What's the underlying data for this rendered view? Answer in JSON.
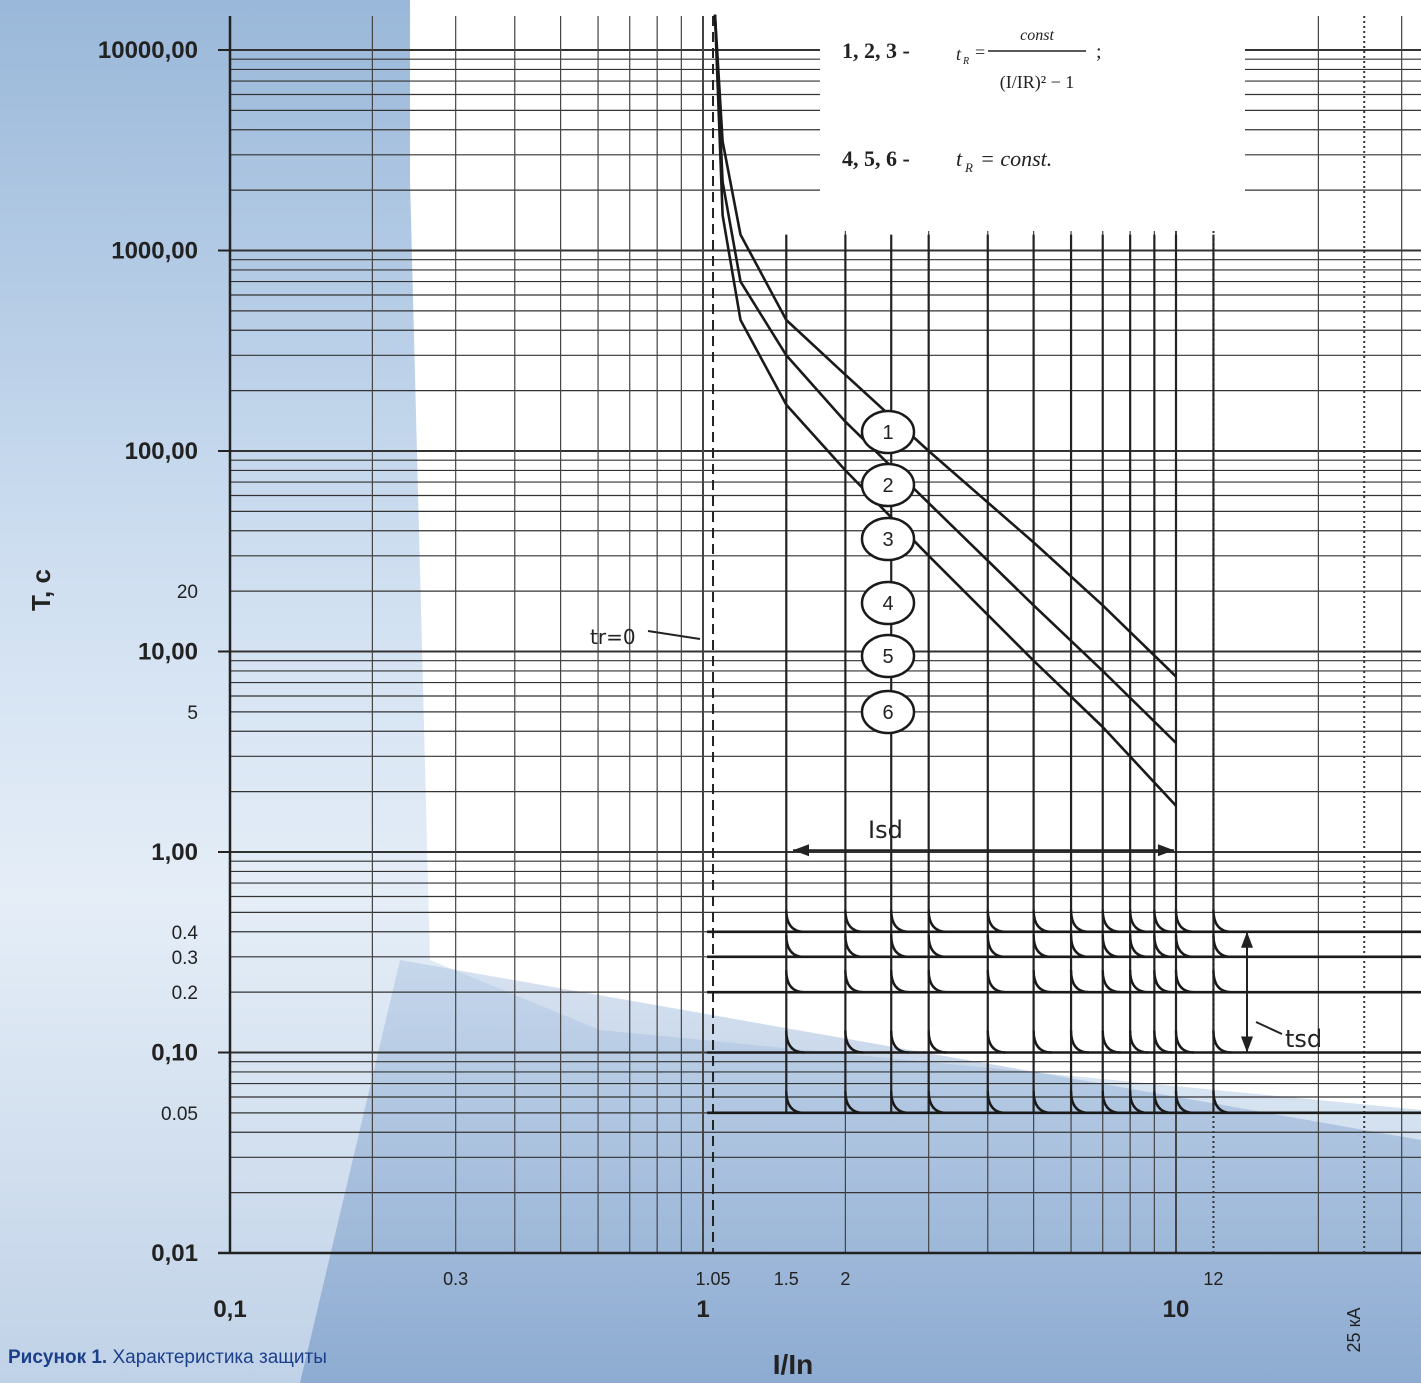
{
  "caption": {
    "bold": "Рисунок 1.",
    "text": " Характеристика защиты"
  },
  "chart_data": {
    "type": "line",
    "xscale": "log",
    "yscale": "log",
    "xlim": [
      0.1,
      30
    ],
    "ylim": [
      0.01,
      15000
    ],
    "xlabel": "I/In",
    "ylabel": "T, c",
    "x_ticks_major": [
      "0,1",
      "1",
      "10"
    ],
    "x_ticks_minor": [
      "0.3",
      "1.05",
      "1.5",
      "2",
      "12"
    ],
    "y_ticks_major": [
      "10000,00",
      "1000,00",
      "100,00",
      "10,00",
      "1,00",
      "0,10",
      "0,01"
    ],
    "y_ticks_minor": [
      "20",
      "5",
      "0.4",
      "0.3",
      "0.2",
      "0.05"
    ],
    "formula_1": {
      "prefix": "1, 2, 3 -",
      "lhs": "t",
      "lhs_sub": "R",
      "numerator": "const",
      "denominator": "(I/IR)² − 1",
      "suffix": ";"
    },
    "formula_2": {
      "prefix": "4, 5, 6 -",
      "lhs": "t",
      "lhs_sub": "R",
      "rhs": "= const."
    },
    "annotations": {
      "tr0": "tr=0",
      "isd": "Isd",
      "tsd": "tsd",
      "ka": "25 кА"
    },
    "curve_labels": [
      "1",
      "2",
      "3",
      "4",
      "5",
      "6"
    ],
    "series": [
      {
        "name": "1",
        "x": [
          1.06,
          1.1,
          1.2,
          1.5,
          2,
          3,
          5,
          7,
          10
        ],
        "y": [
          15000,
          3500,
          1200,
          450,
          240,
          100,
          35,
          17,
          7.5
        ]
      },
      {
        "name": "2",
        "x": [
          1.06,
          1.1,
          1.2,
          1.5,
          2,
          3,
          5,
          7,
          10
        ],
        "y": [
          15000,
          2200,
          700,
          300,
          140,
          55,
          17,
          8,
          3.5
        ]
      },
      {
        "name": "3",
        "x": [
          1.06,
          1.1,
          1.2,
          1.5,
          2,
          3,
          5,
          7,
          10
        ],
        "y": [
          15000,
          1500,
          450,
          170,
          80,
          30,
          9,
          4.2,
          1.7
        ]
      },
      {
        "name": "4",
        "tr": 20
      },
      {
        "name": "5",
        "tr": 10
      },
      {
        "name": "6",
        "tr": 5
      }
    ],
    "isd_values": [
      1.5,
      2,
      2.5,
      3,
      4,
      5,
      6,
      7,
      8,
      9,
      10,
      12
    ],
    "tsd_values": [
      0.4,
      0.3,
      0.2,
      0.1,
      0.05
    ],
    "x_ref_lines": [
      1.05,
      12,
      25
    ]
  }
}
